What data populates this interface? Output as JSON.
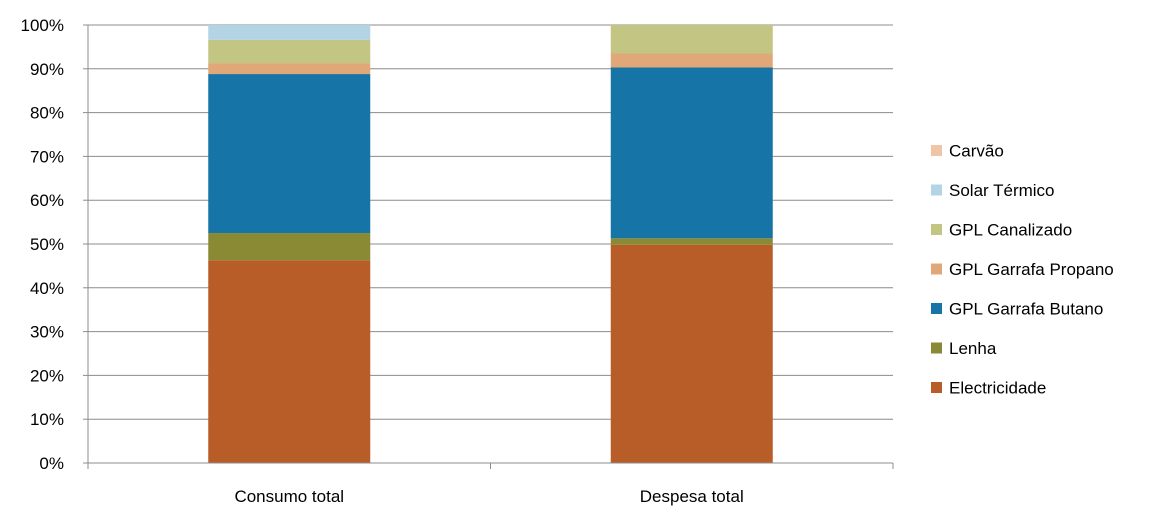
{
  "chart_data": {
    "type": "bar",
    "stacked": true,
    "categories": [
      "Consumo total",
      "Despesa total"
    ],
    "series": [
      {
        "name": "Electricidade",
        "color": "#b85c28",
        "values": [
          46.3,
          49.8
        ]
      },
      {
        "name": "Lenha",
        "color": "#8a8a34",
        "values": [
          6.2,
          1.5
        ]
      },
      {
        "name": "GPL Garrafa Butano",
        "color": "#1674a6",
        "values": [
          36.3,
          39.0
        ]
      },
      {
        "name": "GPL Garrafa Propano",
        "color": "#e0a878",
        "values": [
          2.5,
          3.2
        ]
      },
      {
        "name": "GPL Canalizado",
        "color": "#c2c682",
        "values": [
          5.3,
          6.5
        ]
      },
      {
        "name": "Solar Térmico",
        "color": "#b3d4e4",
        "values": [
          3.4,
          0.0
        ]
      },
      {
        "name": "Carvão",
        "color": "#eec5a5",
        "values": [
          0.0,
          0.0
        ]
      }
    ],
    "ylim": [
      0,
      100
    ],
    "yticks": [
      "0%",
      "10%",
      "20%",
      "30%",
      "40%",
      "50%",
      "60%",
      "70%",
      "80%",
      "90%",
      "100%"
    ],
    "grid": true,
    "legend_position": "right"
  }
}
